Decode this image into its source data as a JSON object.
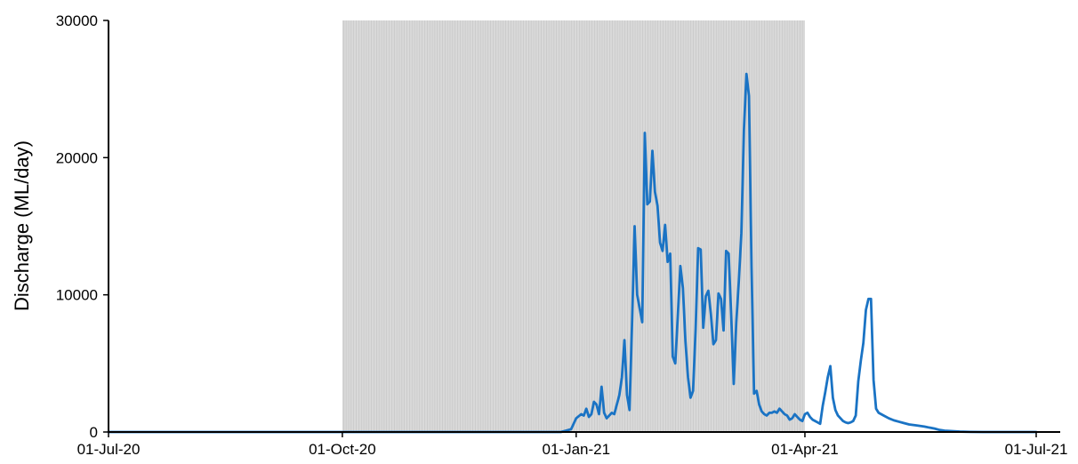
{
  "chart_data": {
    "type": "line",
    "title": "",
    "xlabel": "",
    "ylabel": "Discharge (ML/day)",
    "ylim": [
      0,
      30000
    ],
    "xlim": [
      "2020-07-01",
      "2021-07-01"
    ],
    "yticks": [
      {
        "value": 0,
        "label": "0"
      },
      {
        "value": 10000,
        "label": "10000"
      },
      {
        "value": 20000,
        "label": "20000"
      },
      {
        "value": 30000,
        "label": "30000"
      }
    ],
    "xticks": [
      {
        "value": "2020-07-01",
        "label": "01-Jul-20"
      },
      {
        "value": "2020-10-01",
        "label": "01-Oct-20"
      },
      {
        "value": "2021-01-01",
        "label": "01-Jan-21"
      },
      {
        "value": "2021-04-01",
        "label": "01-Apr-21"
      },
      {
        "value": "2021-07-01",
        "label": "01-Jul-21"
      }
    ],
    "shaded_period": {
      "start": "2020-10-01",
      "end": "2021-04-01",
      "color": "#d9d9d9"
    },
    "grid": false,
    "legend": "none",
    "series": [
      {
        "color": "#1a73c4",
        "points": [
          [
            "2020-07-01",
            0
          ],
          [
            "2020-12-20",
            0
          ],
          [
            "2020-12-26",
            0
          ],
          [
            "2020-12-28",
            100
          ],
          [
            "2020-12-30",
            200
          ],
          [
            "2021-01-01",
            1000
          ],
          [
            "2021-01-03",
            1300
          ],
          [
            "2021-01-04",
            1200
          ],
          [
            "2021-01-05",
            1700
          ],
          [
            "2021-01-06",
            1100
          ],
          [
            "2021-01-07",
            1300
          ],
          [
            "2021-01-08",
            2200
          ],
          [
            "2021-01-09",
            2000
          ],
          [
            "2021-01-10",
            1300
          ],
          [
            "2021-01-11",
            3300
          ],
          [
            "2021-01-12",
            1400
          ],
          [
            "2021-01-13",
            1000
          ],
          [
            "2021-01-15",
            1400
          ],
          [
            "2021-01-16",
            1300
          ],
          [
            "2021-01-18",
            2700
          ],
          [
            "2021-01-19",
            4000
          ],
          [
            "2021-01-20",
            6700
          ],
          [
            "2021-01-21",
            2700
          ],
          [
            "2021-01-22",
            1600
          ],
          [
            "2021-01-23",
            8000
          ],
          [
            "2021-01-24",
            15000
          ],
          [
            "2021-01-25",
            10000
          ],
          [
            "2021-01-26",
            9000
          ],
          [
            "2021-01-27",
            8000
          ],
          [
            "2021-01-28",
            21800
          ],
          [
            "2021-01-29",
            16600
          ],
          [
            "2021-01-30",
            16800
          ],
          [
            "2021-01-31",
            20500
          ],
          [
            "2021-02-01",
            17500
          ],
          [
            "2021-02-02",
            16500
          ],
          [
            "2021-02-03",
            13800
          ],
          [
            "2021-02-04",
            13200
          ],
          [
            "2021-02-05",
            15100
          ],
          [
            "2021-02-06",
            12400
          ],
          [
            "2021-02-07",
            13000
          ],
          [
            "2021-02-08",
            5500
          ],
          [
            "2021-02-09",
            5000
          ],
          [
            "2021-02-10",
            8500
          ],
          [
            "2021-02-11",
            12100
          ],
          [
            "2021-02-12",
            10500
          ],
          [
            "2021-02-13",
            6600
          ],
          [
            "2021-02-14",
            4000
          ],
          [
            "2021-02-15",
            2500
          ],
          [
            "2021-02-16",
            3000
          ],
          [
            "2021-02-17",
            7500
          ],
          [
            "2021-02-18",
            13400
          ],
          [
            "2021-02-19",
            13300
          ],
          [
            "2021-02-20",
            7600
          ],
          [
            "2021-02-21",
            9900
          ],
          [
            "2021-02-22",
            10300
          ],
          [
            "2021-02-23",
            8600
          ],
          [
            "2021-02-24",
            6400
          ],
          [
            "2021-02-25",
            6700
          ],
          [
            "2021-02-26",
            10100
          ],
          [
            "2021-02-27",
            9700
          ],
          [
            "2021-02-28",
            7400
          ],
          [
            "2021-03-01",
            13200
          ],
          [
            "2021-03-02",
            13000
          ],
          [
            "2021-03-03",
            8500
          ],
          [
            "2021-03-04",
            3500
          ],
          [
            "2021-03-05",
            8000
          ],
          [
            "2021-03-06",
            11000
          ],
          [
            "2021-03-07",
            14500
          ],
          [
            "2021-03-08",
            22000
          ],
          [
            "2021-03-09",
            26100
          ],
          [
            "2021-03-10",
            24500
          ],
          [
            "2021-03-11",
            12000
          ],
          [
            "2021-03-12",
            2800
          ],
          [
            "2021-03-13",
            3000
          ],
          [
            "2021-03-14",
            2000
          ],
          [
            "2021-03-15",
            1500
          ],
          [
            "2021-03-16",
            1300
          ],
          [
            "2021-03-17",
            1200
          ],
          [
            "2021-03-18",
            1400
          ],
          [
            "2021-03-19",
            1400
          ],
          [
            "2021-03-20",
            1500
          ],
          [
            "2021-03-21",
            1400
          ],
          [
            "2021-03-22",
            1700
          ],
          [
            "2021-03-23",
            1500
          ],
          [
            "2021-03-24",
            1300
          ],
          [
            "2021-03-25",
            1200
          ],
          [
            "2021-03-26",
            900
          ],
          [
            "2021-03-27",
            1000
          ],
          [
            "2021-03-28",
            1300
          ],
          [
            "2021-03-29",
            1100
          ],
          [
            "2021-03-30",
            900
          ],
          [
            "2021-03-31",
            800
          ],
          [
            "2021-04-01",
            1300
          ],
          [
            "2021-04-02",
            1400
          ],
          [
            "2021-04-03",
            1100
          ],
          [
            "2021-04-04",
            900
          ],
          [
            "2021-04-05",
            800
          ],
          [
            "2021-04-06",
            700
          ],
          [
            "2021-04-07",
            600
          ],
          [
            "2021-04-08",
            1900
          ],
          [
            "2021-04-09",
            2900
          ],
          [
            "2021-04-10",
            4000
          ],
          [
            "2021-04-11",
            4800
          ],
          [
            "2021-04-12",
            2500
          ],
          [
            "2021-04-13",
            1600
          ],
          [
            "2021-04-14",
            1200
          ],
          [
            "2021-04-15",
            1000
          ],
          [
            "2021-04-16",
            800
          ],
          [
            "2021-04-17",
            700
          ],
          [
            "2021-04-18",
            650
          ],
          [
            "2021-04-19",
            700
          ],
          [
            "2021-04-20",
            800
          ],
          [
            "2021-04-21",
            1200
          ],
          [
            "2021-04-22",
            3700
          ],
          [
            "2021-04-23",
            5200
          ],
          [
            "2021-04-24",
            6500
          ],
          [
            "2021-04-25",
            8900
          ],
          [
            "2021-04-26",
            9700
          ],
          [
            "2021-04-27",
            9700
          ],
          [
            "2021-04-28",
            3800
          ],
          [
            "2021-04-29",
            1700
          ],
          [
            "2021-04-30",
            1400
          ],
          [
            "2021-05-02",
            1200
          ],
          [
            "2021-05-04",
            1000
          ],
          [
            "2021-05-06",
            850
          ],
          [
            "2021-05-08",
            750
          ],
          [
            "2021-05-10",
            650
          ],
          [
            "2021-05-12",
            550
          ],
          [
            "2021-05-15",
            480
          ],
          [
            "2021-05-18",
            400
          ],
          [
            "2021-05-20",
            320
          ],
          [
            "2021-05-22",
            250
          ],
          [
            "2021-05-24",
            150
          ],
          [
            "2021-05-26",
            100
          ],
          [
            "2021-05-29",
            60
          ],
          [
            "2021-06-01",
            30
          ],
          [
            "2021-06-05",
            10
          ],
          [
            "2021-06-10",
            0
          ],
          [
            "2021-07-01",
            0
          ]
        ]
      }
    ]
  }
}
